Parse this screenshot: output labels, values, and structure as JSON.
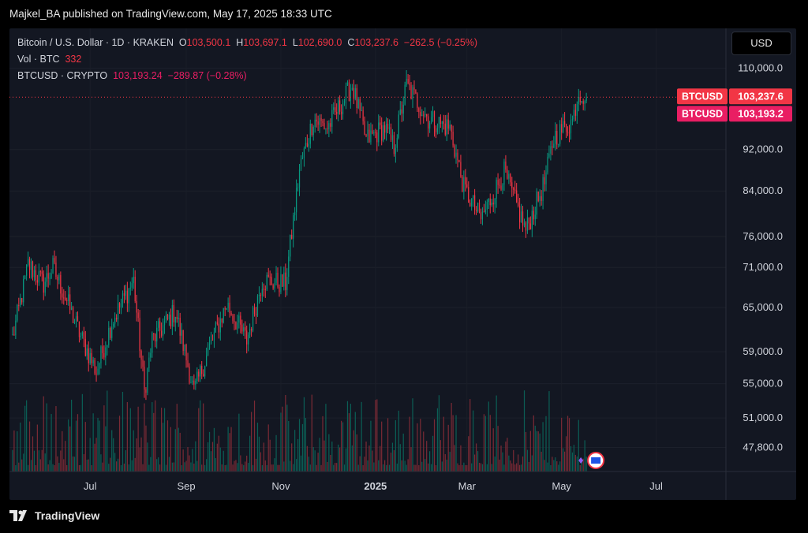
{
  "header": {
    "publisher": "Majkel_BA published on TradingView.com, May 17, 2025 18:33 UTC"
  },
  "legend": {
    "title": "Bitcoin / U.S. Dollar · 1D · KRAKEN",
    "o_label": "O",
    "o": "103,500.1",
    "h_label": "H",
    "h": "103,697.1",
    "l_label": "L",
    "l": "102,690.0",
    "c_label": "C",
    "c": "103,237.6",
    "change": "−262.5 (−0.25%)",
    "vol_label": "Vol · BTC",
    "vol": "332",
    "index_label": "BTCUSD · CRYPTO",
    "index_value": "103,193.24",
    "index_change": "−289.87 (−0.28%)"
  },
  "currency_button": "USD",
  "price_tags": [
    {
      "symbol": "BTCUSD",
      "value": "103,237.6",
      "color": "#f23645"
    },
    {
      "symbol": "BTCUSD",
      "value": "103,193.2",
      "color": "#e91e63"
    }
  ],
  "brand": "TradingView",
  "colors": {
    "up": "#089981",
    "down": "#f23645",
    "up_vol": "#0b5e55",
    "down_vol": "#7a2a35",
    "background": "#131722"
  },
  "chart_data": {
    "type": "candlestick",
    "y_scale": "log",
    "ylim": [
      45500,
      114000
    ],
    "y_ticks": [
      110000,
      92000,
      84000,
      76000,
      71000,
      65000,
      59000,
      55000,
      51000,
      47800
    ],
    "y_tick_labels": [
      "110,000.0",
      "92,000.0",
      "84,000.0",
      "76,000.0",
      "71,000.0",
      "65,000.0",
      "59,000.0",
      "55,000.0",
      "51,000.0",
      "47,800.0"
    ],
    "x_ticks": [
      "Jul",
      "Sep",
      "Nov",
      "2025",
      "Mar",
      "May",
      "Jul"
    ],
    "x_tick_dates": [
      "2024-07-01",
      "2024-09-01",
      "2024-11-01",
      "2025-01-01",
      "2025-03-01",
      "2025-05-01",
      "2025-07-01"
    ],
    "x_range": [
      "2024-05-10",
      "2025-08-15"
    ],
    "last_close": 103237.6,
    "series": [
      {
        "date": "2024-05-12",
        "close": 60800
      },
      {
        "date": "2024-05-20",
        "close": 69000
      },
      {
        "date": "2024-05-22",
        "close": 71500
      },
      {
        "date": "2024-06-01",
        "close": 68500
      },
      {
        "date": "2024-06-07",
        "close": 71000
      },
      {
        "date": "2024-06-15",
        "close": 66500
      },
      {
        "date": "2024-06-25",
        "close": 61000
      },
      {
        "date": "2024-07-05",
        "close": 56500
      },
      {
        "date": "2024-07-15",
        "close": 63000
      },
      {
        "date": "2024-07-29",
        "close": 69000
      },
      {
        "date": "2024-08-05",
        "close": 54000
      },
      {
        "date": "2024-08-10",
        "close": 60500
      },
      {
        "date": "2024-08-25",
        "close": 64500
      },
      {
        "date": "2024-09-06",
        "close": 54000
      },
      {
        "date": "2024-09-15",
        "close": 59000
      },
      {
        "date": "2024-09-27",
        "close": 65500
      },
      {
        "date": "2024-10-10",
        "close": 60500
      },
      {
        "date": "2024-10-20",
        "close": 69000
      },
      {
        "date": "2024-11-04",
        "close": 68500
      },
      {
        "date": "2024-11-13",
        "close": 88000
      },
      {
        "date": "2024-11-22",
        "close": 98500
      },
      {
        "date": "2024-12-01",
        "close": 96500
      },
      {
        "date": "2024-12-17",
        "close": 106000
      },
      {
        "date": "2024-12-26",
        "close": 94000
      },
      {
        "date": "2025-01-07",
        "close": 96500
      },
      {
        "date": "2025-01-13",
        "close": 92500
      },
      {
        "date": "2025-01-21",
        "close": 106000
      },
      {
        "date": "2025-02-04",
        "close": 98500
      },
      {
        "date": "2025-02-18",
        "close": 96500
      },
      {
        "date": "2025-02-27",
        "close": 84500
      },
      {
        "date": "2025-03-10",
        "close": 79000
      },
      {
        "date": "2025-03-25",
        "close": 87500
      },
      {
        "date": "2025-04-08",
        "close": 77000
      },
      {
        "date": "2025-04-20",
        "close": 85500
      },
      {
        "date": "2025-04-26",
        "close": 94500
      },
      {
        "date": "2025-05-08",
        "close": 98000
      },
      {
        "date": "2025-05-12",
        "close": 104500
      },
      {
        "date": "2025-05-17",
        "close": 103237.6
      }
    ]
  }
}
